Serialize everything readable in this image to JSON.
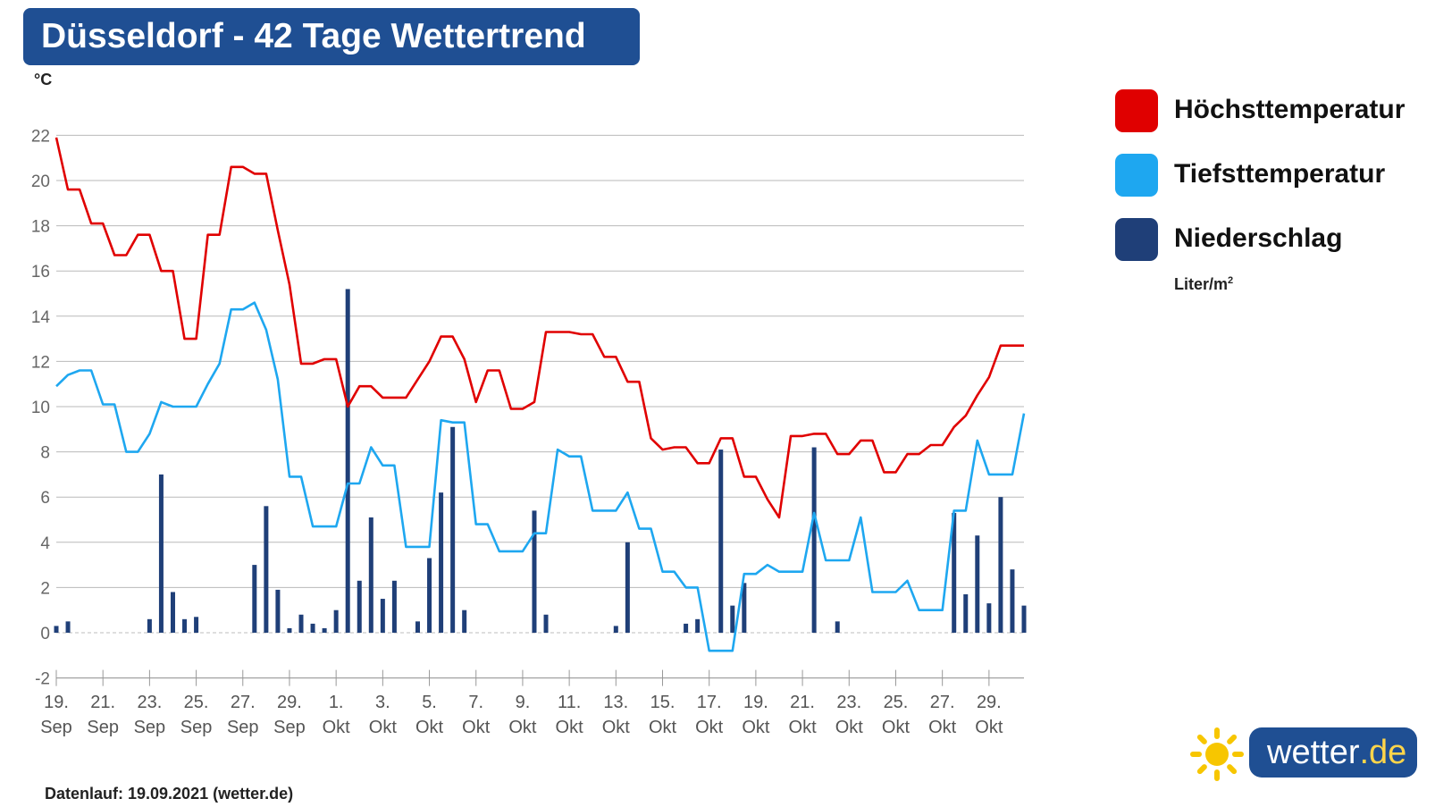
{
  "title": "Düsseldorf - 42 Tage Wettertrend",
  "unit_label": "°C",
  "legend": {
    "items": [
      {
        "label": "Höchsttemperatur",
        "color": "#e00000"
      },
      {
        "label": "Tiefsttemperatur",
        "color": "#1ea7f0"
      },
      {
        "label": "Niederschlag",
        "color": "#1f3f78"
      }
    ],
    "precip_unit": "Liter/m",
    "precip_unit_sup": "2"
  },
  "footer": "Datenlauf: 19.09.2021 (wetter.de)",
  "logo": {
    "name": "wetter",
    "tld": ".de",
    "icon": "sun-icon"
  },
  "colors": {
    "high": "#e00000",
    "low": "#1ea7f0",
    "precip": "#1f3f78",
    "brand": "#1f4f93"
  },
  "chart_data": {
    "type": "line",
    "ylabel": "°C",
    "ylim": [
      -2,
      22
    ],
    "yticks": [
      -2,
      0,
      2,
      4,
      6,
      8,
      10,
      12,
      14,
      16,
      18,
      20,
      22
    ],
    "grid": true,
    "legend_position": "right",
    "x_tick_labels": [
      [
        "19.",
        "Sep"
      ],
      [
        "21.",
        "Sep"
      ],
      [
        "23.",
        "Sep"
      ],
      [
        "25.",
        "Sep"
      ],
      [
        "27.",
        "Sep"
      ],
      [
        "29.",
        "Sep"
      ],
      [
        "1.",
        "Okt"
      ],
      [
        "3.",
        "Okt"
      ],
      [
        "5.",
        "Okt"
      ],
      [
        "7.",
        "Okt"
      ],
      [
        "9.",
        "Okt"
      ],
      [
        "11.",
        "Okt"
      ],
      [
        "13.",
        "Okt"
      ],
      [
        "15.",
        "Okt"
      ],
      [
        "17.",
        "Okt"
      ],
      [
        "19.",
        "Okt"
      ],
      [
        "21.",
        "Okt"
      ],
      [
        "23.",
        "Okt"
      ],
      [
        "25.",
        "Okt"
      ],
      [
        "27.",
        "Okt"
      ],
      [
        "29.",
        "Okt"
      ]
    ],
    "series": [
      {
        "name": "Höchsttemperatur",
        "type": "line",
        "values": [
          21.9,
          19.6,
          19.6,
          18.1,
          18.1,
          16.7,
          16.7,
          17.6,
          17.6,
          16.0,
          16.0,
          13.0,
          13.0,
          17.6,
          17.6,
          20.6,
          20.6,
          20.3,
          20.3,
          17.8,
          15.4,
          11.9,
          11.9,
          12.1,
          12.1,
          10.0,
          10.9,
          10.9,
          10.4,
          10.4,
          10.4,
          11.2,
          12.0,
          13.1,
          13.1,
          12.1,
          10.2,
          11.6,
          11.6,
          9.9,
          9.9,
          10.2,
          13.3,
          13.3,
          13.3,
          13.2,
          13.2,
          12.2,
          12.2,
          11.1,
          11.1,
          8.6,
          8.1,
          8.2,
          8.2,
          7.5,
          7.5,
          8.6,
          8.6,
          6.9,
          6.9,
          5.9,
          5.1,
          8.7,
          8.7,
          8.8,
          8.8,
          7.9,
          7.9,
          8.5,
          8.5,
          7.1,
          7.1,
          7.9,
          7.9,
          8.3,
          8.3,
          9.1,
          9.6,
          10.5,
          11.3,
          12.7,
          12.7,
          12.7
        ]
      },
      {
        "name": "Tiefsttemperatur",
        "type": "line",
        "values": [
          10.9,
          11.4,
          11.6,
          11.6,
          10.1,
          10.1,
          8.0,
          8.0,
          8.8,
          10.2,
          10.0,
          10.0,
          10.0,
          11.0,
          11.9,
          14.3,
          14.3,
          14.6,
          13.4,
          11.2,
          6.9,
          6.9,
          4.7,
          4.7,
          4.7,
          6.6,
          6.6,
          8.2,
          7.4,
          7.4,
          3.8,
          3.8,
          3.8,
          9.4,
          9.3,
          9.3,
          4.8,
          4.8,
          3.6,
          3.6,
          3.6,
          4.4,
          4.4,
          8.1,
          7.8,
          7.8,
          5.4,
          5.4,
          5.4,
          6.2,
          4.6,
          4.6,
          2.7,
          2.7,
          2.0,
          2.0,
          -0.8,
          -0.8,
          -0.8,
          2.6,
          2.6,
          3.0,
          2.7,
          2.7,
          2.7,
          5.3,
          3.2,
          3.2,
          3.2,
          5.1,
          1.8,
          1.8,
          1.8,
          2.3,
          1.0,
          1.0,
          1.0,
          5.4,
          5.4,
          8.5,
          7.0,
          7.0,
          7.0,
          9.7
        ]
      },
      {
        "name": "Niederschlag",
        "unit": "Liter/m²",
        "type": "bar",
        "values": [
          0.3,
          0.5,
          0,
          0,
          0,
          0,
          0,
          0,
          0.6,
          7.0,
          1.8,
          0.6,
          0.7,
          0,
          0,
          0,
          0,
          3.0,
          5.6,
          1.9,
          0.2,
          0.8,
          0.4,
          0.2,
          1.0,
          15.2,
          2.3,
          5.1,
          1.5,
          2.3,
          0,
          0.5,
          3.3,
          6.2,
          9.1,
          1.0,
          0,
          0,
          0,
          0,
          0,
          5.4,
          0.8,
          0,
          0,
          0,
          0,
          0,
          0.3,
          4.0,
          0,
          0,
          0,
          0,
          0.4,
          0.6,
          0,
          8.1,
          1.2,
          2.2,
          0,
          0,
          0,
          0,
          0,
          8.2,
          0,
          0.5,
          0,
          0,
          0,
          0,
          0,
          0,
          0,
          0,
          0,
          5.3,
          1.7,
          4.3,
          1.3,
          6.0,
          2.8,
          1.2
        ]
      }
    ]
  }
}
